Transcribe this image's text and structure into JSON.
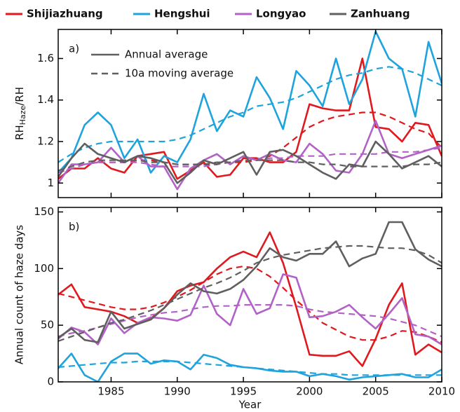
{
  "chart_data": [
    {
      "type": "line",
      "panel_label": "a)",
      "ylabel": {
        "main": "RH",
        "sub": "Haze",
        "rest": "/RH"
      },
      "x": [
        1981,
        1982,
        1983,
        1984,
        1985,
        1986,
        1987,
        1988,
        1989,
        1990,
        1991,
        1992,
        1993,
        1994,
        1995,
        1996,
        1997,
        1998,
        1999,
        2000,
        2001,
        2002,
        2003,
        2004,
        2005,
        2006,
        2007,
        2008,
        2009,
        2010
      ],
      "xlim": [
        1981,
        2010
      ],
      "xticks": [
        1985,
        1990,
        1995,
        2000,
        2005,
        2010
      ],
      "ylim": [
        0.93,
        1.74
      ],
      "yticks": [
        1,
        1.2,
        1.4,
        1.6
      ],
      "legend": [
        {
          "label": "Annual average",
          "style": "solid"
        },
        {
          "label": "10a moving average",
          "style": "dashed"
        }
      ],
      "series": [
        {
          "name": "Shijiazhuang",
          "color": "#e0191e",
          "values": [
            1.02,
            1.07,
            1.07,
            1.12,
            1.07,
            1.05,
            1.13,
            1.14,
            1.15,
            1.02,
            1.06,
            1.1,
            1.03,
            1.04,
            1.12,
            1.12,
            1.1,
            1.1,
            1.15,
            1.38,
            1.36,
            1.35,
            1.35,
            1.6,
            1.27,
            1.26,
            1.2,
            1.29,
            1.28,
            1.13
          ],
          "moving_average": [
            1.05,
            1.07,
            1.09,
            1.1,
            1.1,
            1.1,
            1.11,
            1.11,
            1.1,
            1.09,
            1.09,
            1.09,
            1.09,
            1.1,
            1.1,
            1.11,
            1.13,
            1.17,
            1.22,
            1.27,
            1.3,
            1.32,
            1.33,
            1.34,
            1.34,
            1.32,
            1.29,
            1.26,
            1.24,
            1.17
          ]
        },
        {
          "name": "Hengshui",
          "color": "#1fa3dc",
          "values": [
            1.05,
            1.12,
            1.28,
            1.34,
            1.28,
            1.12,
            1.21,
            1.05,
            1.13,
            1.1,
            1.21,
            1.43,
            1.25,
            1.35,
            1.32,
            1.51,
            1.41,
            1.26,
            1.54,
            1.47,
            1.37,
            1.6,
            1.38,
            1.5,
            1.73,
            1.6,
            1.55,
            1.32,
            1.68,
            1.48
          ],
          "moving_average": [
            1.1,
            1.14,
            1.17,
            1.19,
            1.2,
            1.2,
            1.2,
            1.2,
            1.2,
            1.21,
            1.23,
            1.26,
            1.29,
            1.32,
            1.34,
            1.37,
            1.38,
            1.39,
            1.41,
            1.44,
            1.47,
            1.5,
            1.52,
            1.53,
            1.55,
            1.56,
            1.55,
            1.53,
            1.5,
            1.47
          ]
        },
        {
          "name": "Longyao",
          "color": "#b262c6",
          "values": [
            1.0,
            1.09,
            1.09,
            1.1,
            1.17,
            1.1,
            1.13,
            1.08,
            1.08,
            0.97,
            1.07,
            1.11,
            1.14,
            1.09,
            1.13,
            1.11,
            1.14,
            1.11,
            1.1,
            1.19,
            1.14,
            1.06,
            1.05,
            1.14,
            1.3,
            1.14,
            1.12,
            1.14,
            1.16,
            1.18
          ],
          "moving_average": [
            1.05,
            1.07,
            1.09,
            1.1,
            1.1,
            1.1,
            1.1,
            1.09,
            1.08,
            1.08,
            1.08,
            1.08,
            1.09,
            1.1,
            1.11,
            1.11,
            1.12,
            1.12,
            1.13,
            1.13,
            1.13,
            1.14,
            1.14,
            1.14,
            1.14,
            1.15,
            1.15,
            1.15,
            1.16,
            1.17
          ]
        },
        {
          "name": "Zanhuang",
          "color": "#5f5f5f",
          "values": [
            1.03,
            1.12,
            1.19,
            1.14,
            1.12,
            1.1,
            1.13,
            1.12,
            1.1,
            1.0,
            1.05,
            1.11,
            1.09,
            1.12,
            1.15,
            1.04,
            1.15,
            1.16,
            1.13,
            1.09,
            1.05,
            1.02,
            1.09,
            1.08,
            1.2,
            1.14,
            1.07,
            1.1,
            1.13,
            1.08
          ],
          "moving_average": [
            1.06,
            1.08,
            1.1,
            1.11,
            1.11,
            1.11,
            1.11,
            1.1,
            1.1,
            1.09,
            1.09,
            1.09,
            1.1,
            1.1,
            1.11,
            1.11,
            1.11,
            1.11,
            1.1,
            1.1,
            1.09,
            1.09,
            1.08,
            1.08,
            1.08,
            1.08,
            1.08,
            1.09,
            1.09,
            1.1
          ]
        }
      ]
    },
    {
      "type": "line",
      "panel_label": "b)",
      "ylabel": "Annual count of haze days",
      "xlabel": "Year",
      "x": [
        1981,
        1982,
        1983,
        1984,
        1985,
        1986,
        1987,
        1988,
        1989,
        1990,
        1991,
        1992,
        1993,
        1994,
        1995,
        1996,
        1997,
        1998,
        1999,
        2000,
        2001,
        2002,
        2003,
        2004,
        2005,
        2006,
        2007,
        2008,
        2009,
        2010
      ],
      "xlim": [
        1981,
        2010
      ],
      "xticks": [
        1985,
        1990,
        1995,
        2000,
        2005,
        2010
      ],
      "ylim": [
        0,
        154
      ],
      "yticks": [
        0,
        50,
        100,
        150
      ],
      "series": [
        {
          "color": "#e0191e",
          "values": [
            77,
            86,
            66,
            64,
            62,
            58,
            52,
            56,
            65,
            80,
            85,
            88,
            100,
            110,
            115,
            110,
            132,
            105,
            66,
            24,
            23,
            23,
            27,
            14,
            38,
            68,
            87,
            24,
            33,
            26
          ],
          "moving_average": [
            78,
            75,
            72,
            69,
            66,
            64,
            64,
            66,
            70,
            75,
            81,
            88,
            95,
            100,
            102,
            100,
            93,
            83,
            72,
            62,
            52,
            46,
            40,
            37,
            37,
            40,
            45,
            44,
            40,
            35
          ]
        },
        {
          "color": "#1fa3dc",
          "values": [
            12,
            25,
            6,
            0,
            18,
            25,
            25,
            16,
            19,
            18,
            11,
            24,
            21,
            15,
            13,
            12,
            10,
            9,
            9,
            5,
            7,
            5,
            2,
            4,
            5,
            6,
            7,
            4,
            4,
            11
          ],
          "moving_average": [
            13,
            14,
            15,
            16,
            17,
            17,
            18,
            18,
            18,
            18,
            17,
            16,
            15,
            14,
            13,
            12,
            11,
            10,
            9,
            8,
            7,
            7,
            6,
            6,
            6,
            6,
            6,
            6,
            6,
            6
          ]
        },
        {
          "color": "#b262c6",
          "values": [
            38,
            48,
            44,
            33,
            56,
            43,
            52,
            57,
            56,
            54,
            59,
            85,
            60,
            50,
            82,
            60,
            65,
            95,
            92,
            57,
            58,
            62,
            68,
            57,
            47,
            60,
            74,
            42,
            40,
            33
          ],
          "moving_average": [
            40,
            43,
            45,
            48,
            51,
            54,
            57,
            59,
            61,
            62,
            64,
            66,
            67,
            67,
            68,
            68,
            68,
            68,
            67,
            64,
            62,
            61,
            60,
            59,
            58,
            56,
            53,
            50,
            45,
            40
          ]
        },
        {
          "color": "#5f5f5f",
          "values": [
            39,
            47,
            37,
            35,
            62,
            47,
            51,
            55,
            65,
            77,
            87,
            80,
            78,
            82,
            90,
            102,
            118,
            110,
            107,
            113,
            113,
            124,
            102,
            109,
            113,
            141,
            141,
            117,
            108,
            102
          ],
          "moving_average": [
            36,
            40,
            44,
            48,
            52,
            55,
            59,
            63,
            68,
            73,
            78,
            83,
            87,
            92,
            98,
            105,
            109,
            112,
            114,
            116,
            118,
            119,
            120,
            120,
            119,
            118,
            118,
            116,
            112,
            105
          ]
        }
      ]
    }
  ]
}
